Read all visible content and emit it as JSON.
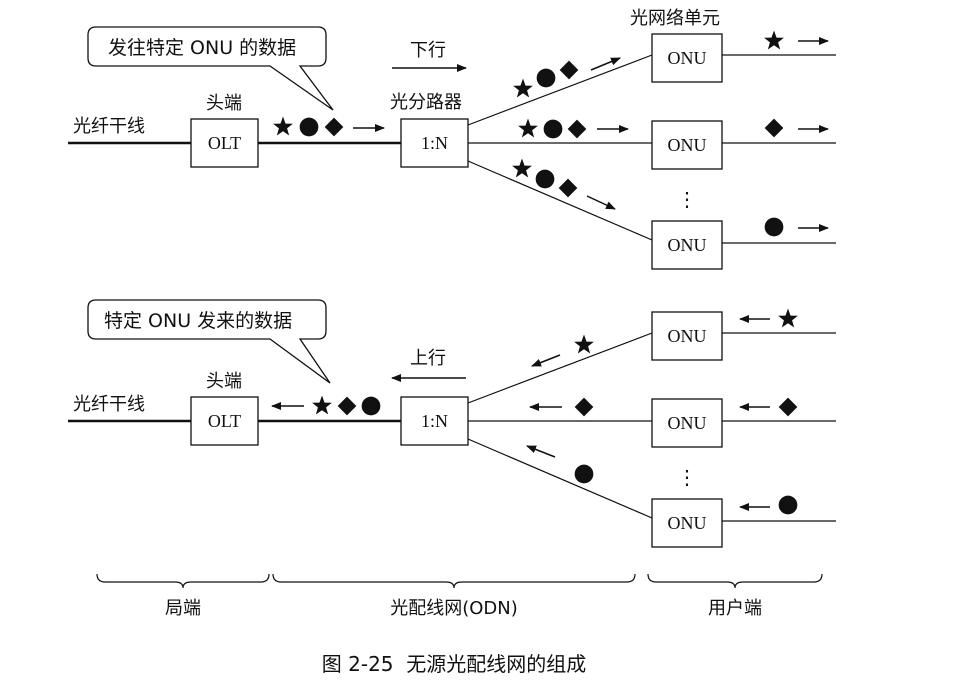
{
  "downstream": {
    "bubble_text": "发往特定 ONU 的数据",
    "direction_label": "下行",
    "trunk_label": "光纤干线",
    "headend_label": "头端",
    "splitter_label": "光分路器",
    "onu_group_label": "光网络单元",
    "olt": "OLT",
    "splitter": "1:N",
    "onus": [
      "ONU",
      "ONU",
      "ONU"
    ],
    "ellipsis": "⋮"
  },
  "upstream": {
    "bubble_text": "特定 ONU 发来的数据",
    "direction_label": "上行",
    "trunk_label": "光纤干线",
    "headend_label": "头端",
    "olt": "OLT",
    "splitter": "1:N",
    "onus": [
      "ONU",
      "ONU",
      "ONU"
    ],
    "ellipsis": "⋮"
  },
  "sections": {
    "office": "局端",
    "odn": "光配线网(ODN)",
    "user": "用户端"
  },
  "caption": "图 2-25  无源光配线网的组成",
  "symbol_icons": [
    "star-icon",
    "circle-icon",
    "diamond-icon"
  ],
  "colors": {
    "ink": "#111111",
    "background": "#ffffff"
  }
}
